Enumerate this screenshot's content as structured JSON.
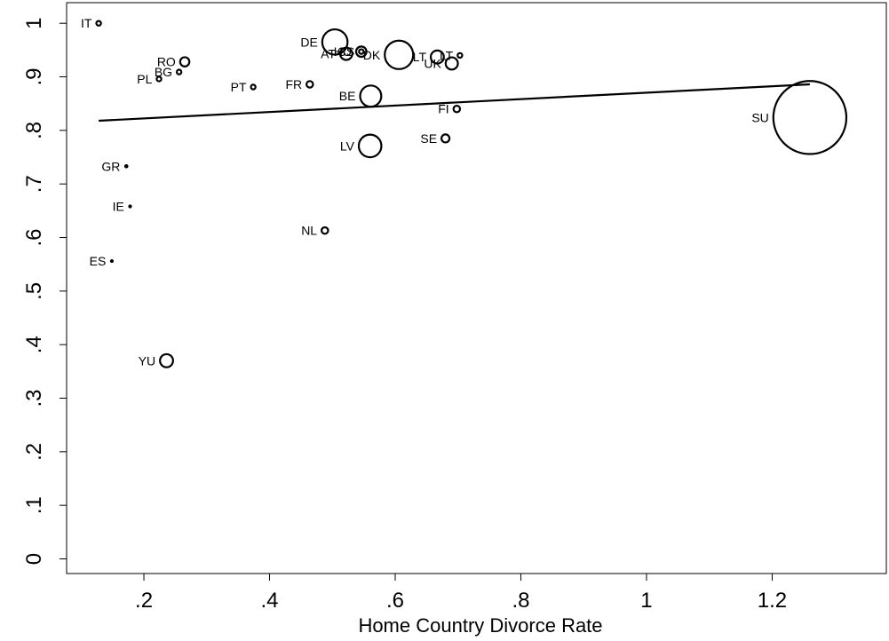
{
  "chart_data": {
    "type": "scatter",
    "title": "",
    "xlabel": "Home Country Divorce Rate",
    "ylabel": "",
    "xlim": [
      0.01,
      1.26
    ],
    "ylim": [
      -0.02,
      1.03
    ],
    "xticks": [
      ".2",
      ".4",
      ".6",
      ".8",
      "1",
      "1.2"
    ],
    "xtick_values": [
      0.2,
      0.4,
      0.6,
      0.8,
      1.0,
      1.2
    ],
    "yticks": [
      "0",
      ".1",
      ".2",
      ".3",
      ".4",
      ".5",
      ".6",
      ".7",
      ".8",
      ".9",
      "1"
    ],
    "ytick_values": [
      0,
      0.1,
      0.2,
      0.3,
      0.4,
      0.5,
      0.6,
      0.7,
      0.8,
      0.9,
      1.0
    ],
    "grid": false,
    "marker": "hollow circle, size proportional to weight",
    "points": [
      {
        "label": "IT",
        "x": 0.128,
        "y": 1.0,
        "weight": 1
      },
      {
        "label": "RO",
        "x": 0.265,
        "y": 0.928,
        "weight": 4
      },
      {
        "label": "BG",
        "x": 0.256,
        "y": 0.909,
        "weight": 1
      },
      {
        "label": "PL",
        "x": 0.224,
        "y": 0.896,
        "weight": 1
      },
      {
        "label": "PT",
        "x": 0.374,
        "y": 0.881,
        "weight": 1
      },
      {
        "label": "FR",
        "x": 0.464,
        "y": 0.886,
        "weight": 2
      },
      {
        "label": "DE",
        "x": 0.504,
        "y": 0.965,
        "weight": 30
      },
      {
        "label": "AT",
        "x": 0.522,
        "y": 0.943,
        "weight": 7
      },
      {
        "label": "HU",
        "x": 0.546,
        "y": 0.947,
        "weight": 5
      },
      {
        "label": "CS",
        "x": 0.546,
        "y": 0.947,
        "weight": 1
      },
      {
        "label": "DK",
        "x": 0.606,
        "y": 0.941,
        "weight": 38
      },
      {
        "label": "LT",
        "x": 0.703,
        "y": 0.94,
        "weight": 1
      },
      {
        "label": "LT",
        "x": 0.667,
        "y": 0.937,
        "weight": 8
      },
      {
        "label": "UK",
        "x": 0.69,
        "y": 0.925,
        "weight": 7
      },
      {
        "label": "BE",
        "x": 0.561,
        "y": 0.864,
        "weight": 21
      },
      {
        "label": "FI",
        "x": 0.698,
        "y": 0.84,
        "weight": 2
      },
      {
        "label": "SU",
        "x": 1.26,
        "y": 0.824,
        "weight": 250
      },
      {
        "label": "SE",
        "x": 0.68,
        "y": 0.785,
        "weight": 3
      },
      {
        "label": "LV",
        "x": 0.56,
        "y": 0.771,
        "weight": 24
      },
      {
        "label": "GR",
        "x": 0.172,
        "y": 0.733,
        "weight": 0.5
      },
      {
        "label": "IE",
        "x": 0.178,
        "y": 0.658,
        "weight": 0.3
      },
      {
        "label": "NL",
        "x": 0.488,
        "y": 0.613,
        "weight": 2
      },
      {
        "label": "ES",
        "x": 0.149,
        "y": 0.556,
        "weight": 0.3
      },
      {
        "label": "YU",
        "x": 0.236,
        "y": 0.37,
        "weight": 8
      }
    ],
    "fit_line": {
      "x": [
        0.128,
        1.26
      ],
      "y": [
        0.818,
        0.886
      ]
    }
  }
}
